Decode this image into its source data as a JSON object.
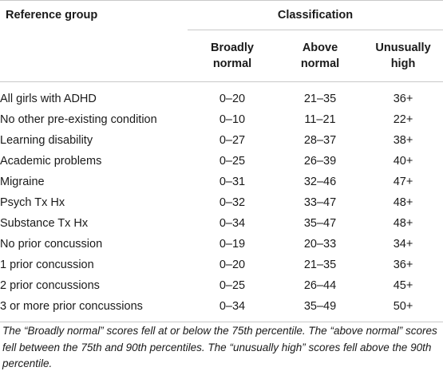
{
  "table": {
    "header": {
      "reference_group": "Reference group",
      "classification": "Classification",
      "columns": [
        {
          "line1": "Broadly",
          "line2": "normal"
        },
        {
          "line1": "Above",
          "line2": "normal"
        },
        {
          "line1": "Unusually",
          "line2": "high"
        }
      ]
    },
    "rows": [
      {
        "group": "All girls with ADHD",
        "broadly_normal": "0–20",
        "above_normal": "21–35",
        "unusually_high": "36+"
      },
      {
        "group": "No other pre-existing condition",
        "broadly_normal": "0–10",
        "above_normal": "11–21",
        "unusually_high": "22+"
      },
      {
        "group": "Learning disability",
        "broadly_normal": "0–27",
        "above_normal": "28–37",
        "unusually_high": "38+"
      },
      {
        "group": "Academic problems",
        "broadly_normal": "0–25",
        "above_normal": "26–39",
        "unusually_high": "40+"
      },
      {
        "group": "Migraine",
        "broadly_normal": "0–31",
        "above_normal": "32–46",
        "unusually_high": "47+"
      },
      {
        "group": "Psych Tx Hx",
        "broadly_normal": "0–32",
        "above_normal": "33–47",
        "unusually_high": "48+"
      },
      {
        "group": "Substance Tx Hx",
        "broadly_normal": "0–34",
        "above_normal": "35–47",
        "unusually_high": "48+"
      },
      {
        "group": "No prior concussion",
        "broadly_normal": "0–19",
        "above_normal": "20–33",
        "unusually_high": "34+"
      },
      {
        "group": "1 prior concussion",
        "broadly_normal": "0–20",
        "above_normal": "21–35",
        "unusually_high": "36+"
      },
      {
        "group": "2 prior concussions",
        "broadly_normal": "0–25",
        "above_normal": "26–44",
        "unusually_high": "45+"
      },
      {
        "group": "3 or more prior concussions",
        "broadly_normal": "0–34",
        "above_normal": "35–49",
        "unusually_high": "50+"
      }
    ]
  },
  "footnote": "The “Broadly normal” scores fell at or below the 75th percentile. The “above normal” scores fell between the 75th and 90th percentiles. The “unusually high” scores fell above the 90th percentile."
}
